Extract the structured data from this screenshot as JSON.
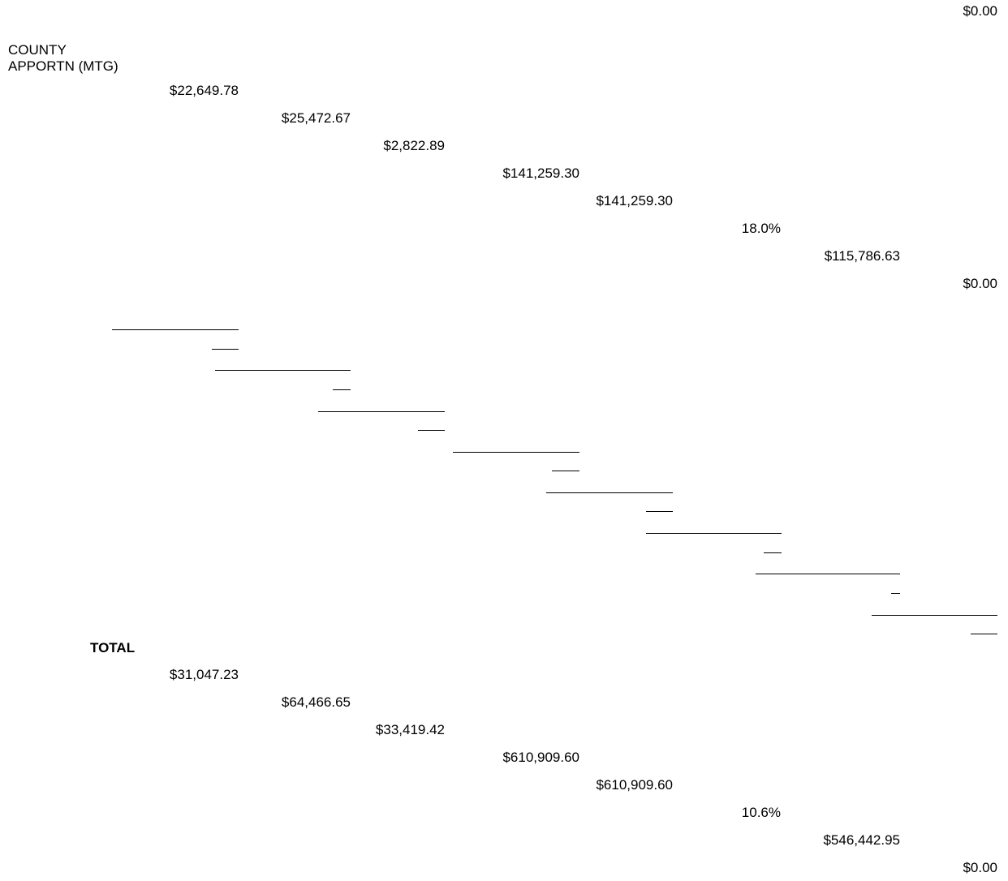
{
  "header": {
    "top_value": "$0.00"
  },
  "county_section": {
    "label_line1": "COUNTY",
    "label_line2": "APPORTN (MTG)",
    "values": [
      "$22,649.78",
      "$25,472.67",
      "$2,822.89",
      "$141,259.30",
      "$141,259.30",
      "18.0%",
      "$115,786.63",
      "$0.00"
    ]
  },
  "total_section": {
    "label": "TOTAL",
    "values": [
      "$31,047.23",
      "$64,466.65",
      "$33,419.42",
      "$610,909.60",
      "$610,909.60",
      "10.6%",
      "$546,442.95",
      "$0.00"
    ]
  }
}
